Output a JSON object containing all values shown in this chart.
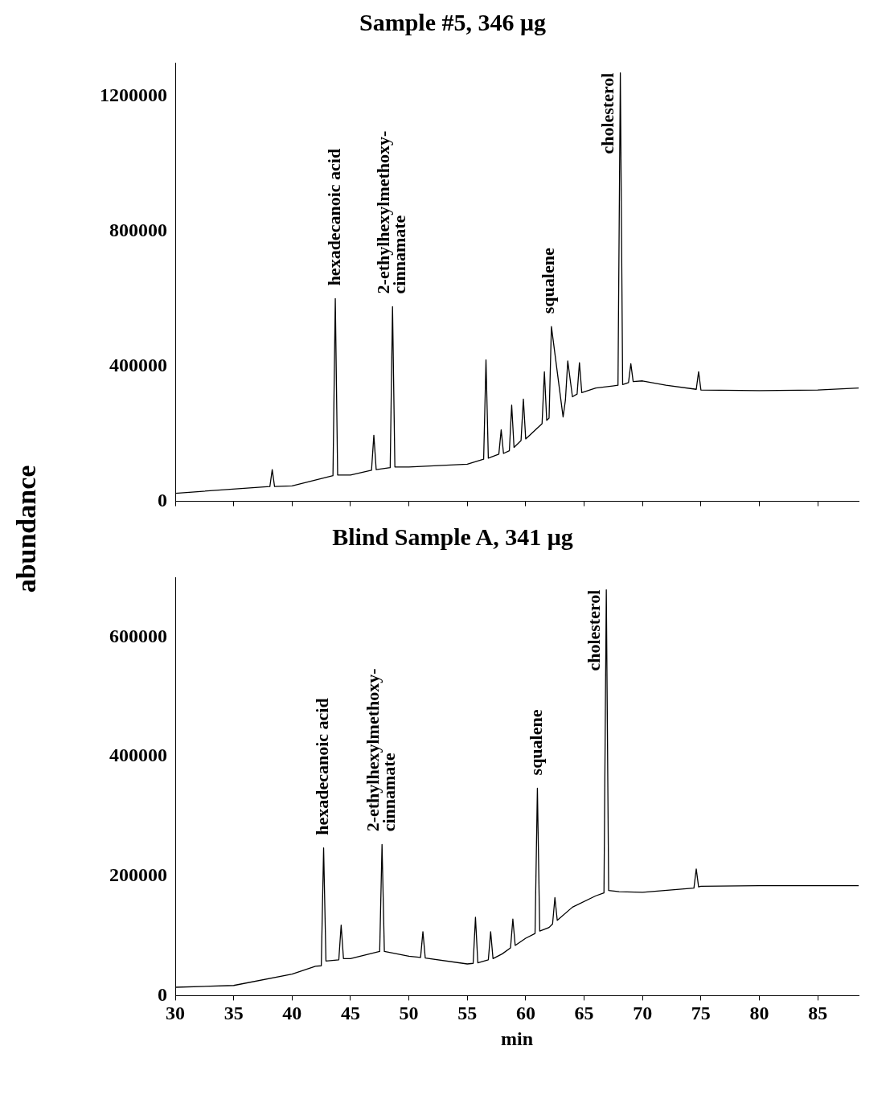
{
  "chart_data": [
    {
      "type": "line",
      "title": "Sample #5, 346 μg",
      "ylabel": "abundance",
      "xlim": [
        30,
        88.5
      ],
      "xticks": [
        30,
        35,
        40,
        45,
        50,
        55,
        60,
        65,
        70,
        75,
        80,
        85
      ],
      "ylim": [
        0,
        1300000
      ],
      "yticks": [
        0,
        400000,
        800000,
        1200000
      ],
      "tick_labels": "y",
      "grid": false,
      "legend": false,
      "marker": "none",
      "series": [
        {
          "color": "#000000",
          "x": [
            30,
            38.1,
            38.3,
            38.5,
            40,
            43.5,
            43.7,
            43.9,
            45,
            46.8,
            47,
            47.2,
            48.4,
            48.6,
            48.8,
            50,
            55,
            56.4,
            56.6,
            56.8,
            57.7,
            57.9,
            58.1,
            58.6,
            58.8,
            59,
            59.6,
            59.8,
            60,
            61.4,
            61.6,
            61.8,
            62,
            62.2,
            63.2,
            63.4,
            63.6,
            64,
            64.4,
            64.6,
            64.8,
            66,
            67.9,
            68.1,
            68.3,
            68.8,
            69,
            69.2,
            70,
            72,
            74.6,
            74.8,
            75,
            80,
            85,
            88.5
          ],
          "values": [
            24000,
            44000,
            94000,
            44000,
            46000,
            76000,
            601000,
            78000,
            78000,
            92000,
            196000,
            94000,
            100000,
            577000,
            102000,
            102000,
            110000,
            125000,
            419000,
            128000,
            140000,
            212000,
            142000,
            150000,
            285000,
            160000,
            180000,
            303000,
            185000,
            230000,
            384000,
            240000,
            247000,
            518000,
            250000,
            300000,
            416000,
            310000,
            318000,
            411000,
            322000,
            336000,
            344000,
            1270000,
            346000,
            352000,
            408000,
            355000,
            357000,
            344000,
            332000,
            384000,
            330000,
            328000,
            330000,
            336000
          ]
        }
      ],
      "annotations": [
        {
          "text": "hexadecanoic acid",
          "x": 43.7,
          "y": 601000
        },
        {
          "text": "2-ethylhexylmethoxy-\ncinnamate",
          "x": 48.6,
          "y": 577000
        },
        {
          "text": "squalene",
          "x": 62,
          "y": 518000
        },
        {
          "text": "cholesterol",
          "x": 68.1,
          "y": 1270000
        }
      ]
    },
    {
      "type": "line",
      "title": "Blind Sample A, 341 μg",
      "xlabel": "min",
      "xlim": [
        30,
        88.5
      ],
      "xticks": [
        30,
        35,
        40,
        45,
        50,
        55,
        60,
        65,
        70,
        75,
        80,
        85
      ],
      "ylim": [
        0,
        700000
      ],
      "yticks": [
        0,
        200000,
        400000,
        600000
      ],
      "grid": false,
      "legend": false,
      "marker": "none",
      "series": [
        {
          "color": "#000000",
          "x": [
            30,
            35,
            40,
            42,
            42.5,
            42.7,
            42.9,
            44,
            44.2,
            44.4,
            45,
            47.5,
            47.7,
            47.9,
            50,
            51,
            51.2,
            51.4,
            55,
            55.5,
            55.7,
            55.9,
            56.8,
            57,
            57.2,
            58,
            58.7,
            58.9,
            59.1,
            60,
            60.8,
            61,
            61.2,
            62,
            62.3,
            62.5,
            62.7,
            64,
            66,
            66.7,
            66.9,
            67.1,
            68,
            70,
            74.4,
            74.6,
            74.8,
            75,
            80,
            85,
            88.5
          ],
          "values": [
            14000,
            17000,
            36000,
            49000,
            50000,
            247000,
            58000,
            60000,
            118000,
            62000,
            62000,
            74000,
            253000,
            74000,
            66000,
            64000,
            107000,
            63000,
            53000,
            54000,
            131000,
            55000,
            60000,
            107000,
            62000,
            70000,
            80000,
            128000,
            84000,
            96000,
            104000,
            347000,
            108000,
            114000,
            120000,
            164000,
            126000,
            148000,
            167000,
            172000,
            679000,
            176000,
            174000,
            173000,
            180000,
            212000,
            182000,
            183000,
            184000,
            184000,
            184000
          ]
        }
      ],
      "annotations": [
        {
          "text": "hexadecanoic acid",
          "x": 42.7,
          "y": 247000
        },
        {
          "text": "2-ethylhexylmethoxy-\ncinnamate",
          "x": 47.7,
          "y": 253000
        },
        {
          "text": "squalene",
          "x": 61,
          "y": 347000
        },
        {
          "text": "cholesterol",
          "x": 66.9,
          "y": 679000
        }
      ]
    }
  ]
}
